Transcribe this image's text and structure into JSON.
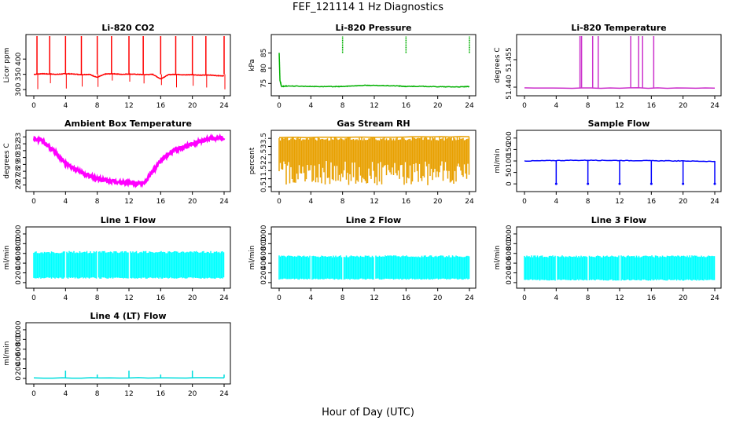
{
  "figure": {
    "title": "FEF_121114  1 Hz Diagnostics",
    "xlabel": "Hour of Day (UTC)"
  },
  "chart_data": [
    {
      "type": "line",
      "title": "Li-820 CO2",
      "ylabel": "Licor ppm",
      "color": "#ff0000",
      "xlim": [
        0,
        24
      ],
      "xticks": [
        0,
        4,
        8,
        12,
        16,
        20,
        24
      ],
      "ylim": [
        290,
        470
      ],
      "yticks": [
        300,
        350,
        400
      ],
      "series": [
        {
          "x": [
            0,
            1,
            2,
            3,
            4,
            5,
            6,
            7,
            8,
            9,
            10,
            11,
            12,
            13,
            14,
            15,
            16,
            17,
            18,
            19,
            20,
            21,
            22,
            23,
            24
          ],
          "y": [
            350,
            352,
            351,
            350,
            352,
            351,
            349,
            350,
            340,
            351,
            352,
            350,
            351,
            350,
            349,
            350,
            335,
            349,
            350,
            348,
            349,
            347,
            348,
            346,
            345
          ]
        }
      ],
      "spikes": [
        0.4,
        2.0,
        4.0,
        6.0,
        8.0,
        9.8,
        12.0,
        13.8,
        16.0,
        17.9,
        20.0,
        21.7,
        24.0
      ]
    },
    {
      "type": "line",
      "title": "Li-820 Pressure",
      "ylabel": "kPa",
      "color": "#00b000",
      "xlim": [
        0,
        24
      ],
      "xticks": [
        0,
        4,
        8,
        12,
        16,
        20,
        24
      ],
      "ylim": [
        72,
        90
      ],
      "yticks": [
        75,
        80,
        85
      ],
      "series": [
        {
          "x": [
            0,
            0.1,
            0.3,
            1,
            3,
            5,
            7,
            8,
            9,
            11,
            13,
            15,
            16,
            17,
            19,
            21,
            23,
            24
          ],
          "y": [
            85,
            76,
            74,
            74.2,
            74.1,
            74.0,
            74.0,
            74.0,
            74.2,
            74.4,
            74.3,
            74.2,
            74.0,
            74.1,
            74.0,
            73.9,
            73.9,
            74.0
          ]
        }
      ],
      "spikes": [
        8.0,
        16.0,
        24.0
      ]
    },
    {
      "type": "line",
      "title": "Li-820 Temperature",
      "ylabel": "degrees C",
      "color": "#cc33cc",
      "xlim": [
        0,
        24
      ],
      "xticks": [
        0,
        4,
        8,
        12,
        16,
        20,
        24
      ],
      "ylim": [
        51.437,
        51.467
      ],
      "yticks": [
        51.44,
        51.455
      ],
      "extra_ytick_labels": [
        "51.440",
        "51.455"
      ],
      "series": [
        {
          "x": [
            0,
            24
          ],
          "y": [
            51.4395,
            51.4395
          ]
        }
      ],
      "spikes": [
        7.0,
        7.2,
        8.6,
        9.3,
        13.4,
        14.4,
        14.9,
        16.3
      ]
    },
    {
      "type": "line",
      "title": "Ambient Box Temperature",
      "ylabel": "degrees C",
      "color": "#ff00ff",
      "xlim": [
        0,
        24
      ],
      "xticks": [
        0,
        4,
        8,
        12,
        16,
        20,
        24
      ],
      "ylim": [
        25.5,
        33.5
      ],
      "yticks": [
        26,
        27,
        28,
        29,
        30,
        31,
        32,
        33
      ],
      "series": [
        {
          "x": [
            0,
            1,
            2,
            3,
            4,
            5,
            6,
            7,
            8,
            9,
            10,
            11,
            12,
            13,
            14,
            15,
            16,
            17,
            18,
            19,
            20,
            21,
            22,
            23,
            24
          ],
          "y": [
            32.8,
            32.4,
            31.5,
            30.4,
            29.2,
            28.4,
            27.8,
            27.3,
            26.9,
            26.7,
            26.5,
            26.4,
            26.3,
            26.2,
            26.4,
            28.0,
            29.5,
            30.5,
            31.2,
            31.6,
            32.0,
            32.4,
            32.7,
            32.8,
            32.8
          ]
        }
      ]
    },
    {
      "type": "line",
      "title": "Gas Stream RH",
      "ylabel": "percent",
      "color": "#e8a000",
      "xlim": [
        0,
        24
      ],
      "xticks": [
        0,
        4,
        8,
        12,
        16,
        20,
        24
      ],
      "ylim": [
        0.4,
        3.8
      ],
      "yticks": [
        0.5,
        1.0,
        1.5,
        2.0,
        2.5,
        3.0,
        3.5
      ],
      "band": [
        0.6,
        3.6
      ],
      "series": [
        {
          "x": [
            0,
            24
          ],
          "y": [
            3.55,
            3.6
          ]
        }
      ]
    },
    {
      "type": "line",
      "title": "Sample Flow",
      "ylabel": "ml/min",
      "color": "#0000ff",
      "xlim": [
        0,
        24
      ],
      "xticks": [
        0,
        4,
        8,
        12,
        16,
        20,
        24
      ],
      "ylim": [
        -20,
        220
      ],
      "yticks": [
        0,
        50,
        100,
        150,
        200
      ],
      "series": [
        {
          "x": [
            0,
            4,
            8,
            12,
            16,
            20,
            24
          ],
          "y": [
            100,
            102,
            103,
            102,
            101,
            100,
            98
          ]
        }
      ],
      "dips": [
        4.0,
        8.0,
        12.0,
        16.0,
        20.0,
        24.0
      ]
    },
    {
      "type": "line",
      "title": "Line 1 Flow",
      "ylabel": "ml/min",
      "color": "#00ffff",
      "xlim": [
        0,
        24
      ],
      "xticks": [
        0,
        4,
        8,
        12,
        16,
        20,
        24
      ],
      "ylim": [
        -50,
        1080
      ],
      "yticks": [
        0,
        200,
        400,
        600,
        800,
        1000
      ],
      "band": [
        80,
        650
      ],
      "gaps": [
        4,
        8,
        12,
        16,
        20
      ]
    },
    {
      "type": "line",
      "title": "Line 2 Flow",
      "ylabel": "ml/min",
      "color": "#00ffff",
      "xlim": [
        0,
        24
      ],
      "xticks": [
        0,
        4,
        8,
        12,
        16,
        20,
        24
      ],
      "ylim": [
        -50,
        1080
      ],
      "yticks": [
        0,
        200,
        400,
        600,
        800,
        1000
      ],
      "band": [
        60,
        560
      ],
      "gaps": [
        4,
        8,
        12,
        16,
        20
      ]
    },
    {
      "type": "line",
      "title": "Line 3 Flow",
      "ylabel": "ml/min",
      "color": "#00ffff",
      "xlim": [
        0,
        24
      ],
      "xticks": [
        0,
        4,
        8,
        12,
        16,
        20,
        24
      ],
      "ylim": [
        -50,
        1080
      ],
      "yticks": [
        0,
        200,
        400,
        600,
        800,
        1000
      ],
      "band": [
        40,
        560
      ],
      "gaps": [
        4,
        8,
        12,
        16,
        20
      ]
    },
    {
      "type": "line",
      "title": "Line 4 (LT) Flow",
      "ylabel": "ml/min",
      "color": "#00dddd",
      "xlim": [
        0,
        24
      ],
      "xticks": [
        0,
        4,
        8,
        12,
        16,
        20,
        24
      ],
      "ylim": [
        -50,
        1080
      ],
      "yticks": [
        0,
        200,
        400,
        600,
        800,
        1000
      ],
      "series": [
        {
          "x": [
            0,
            24
          ],
          "y": [
            10,
            10
          ]
        }
      ],
      "spikes": [
        4.0,
        8.0,
        12.0,
        16.0,
        20.0,
        24.0
      ],
      "spike_heights": [
        160,
        80,
        160,
        80,
        160,
        80
      ]
    }
  ]
}
